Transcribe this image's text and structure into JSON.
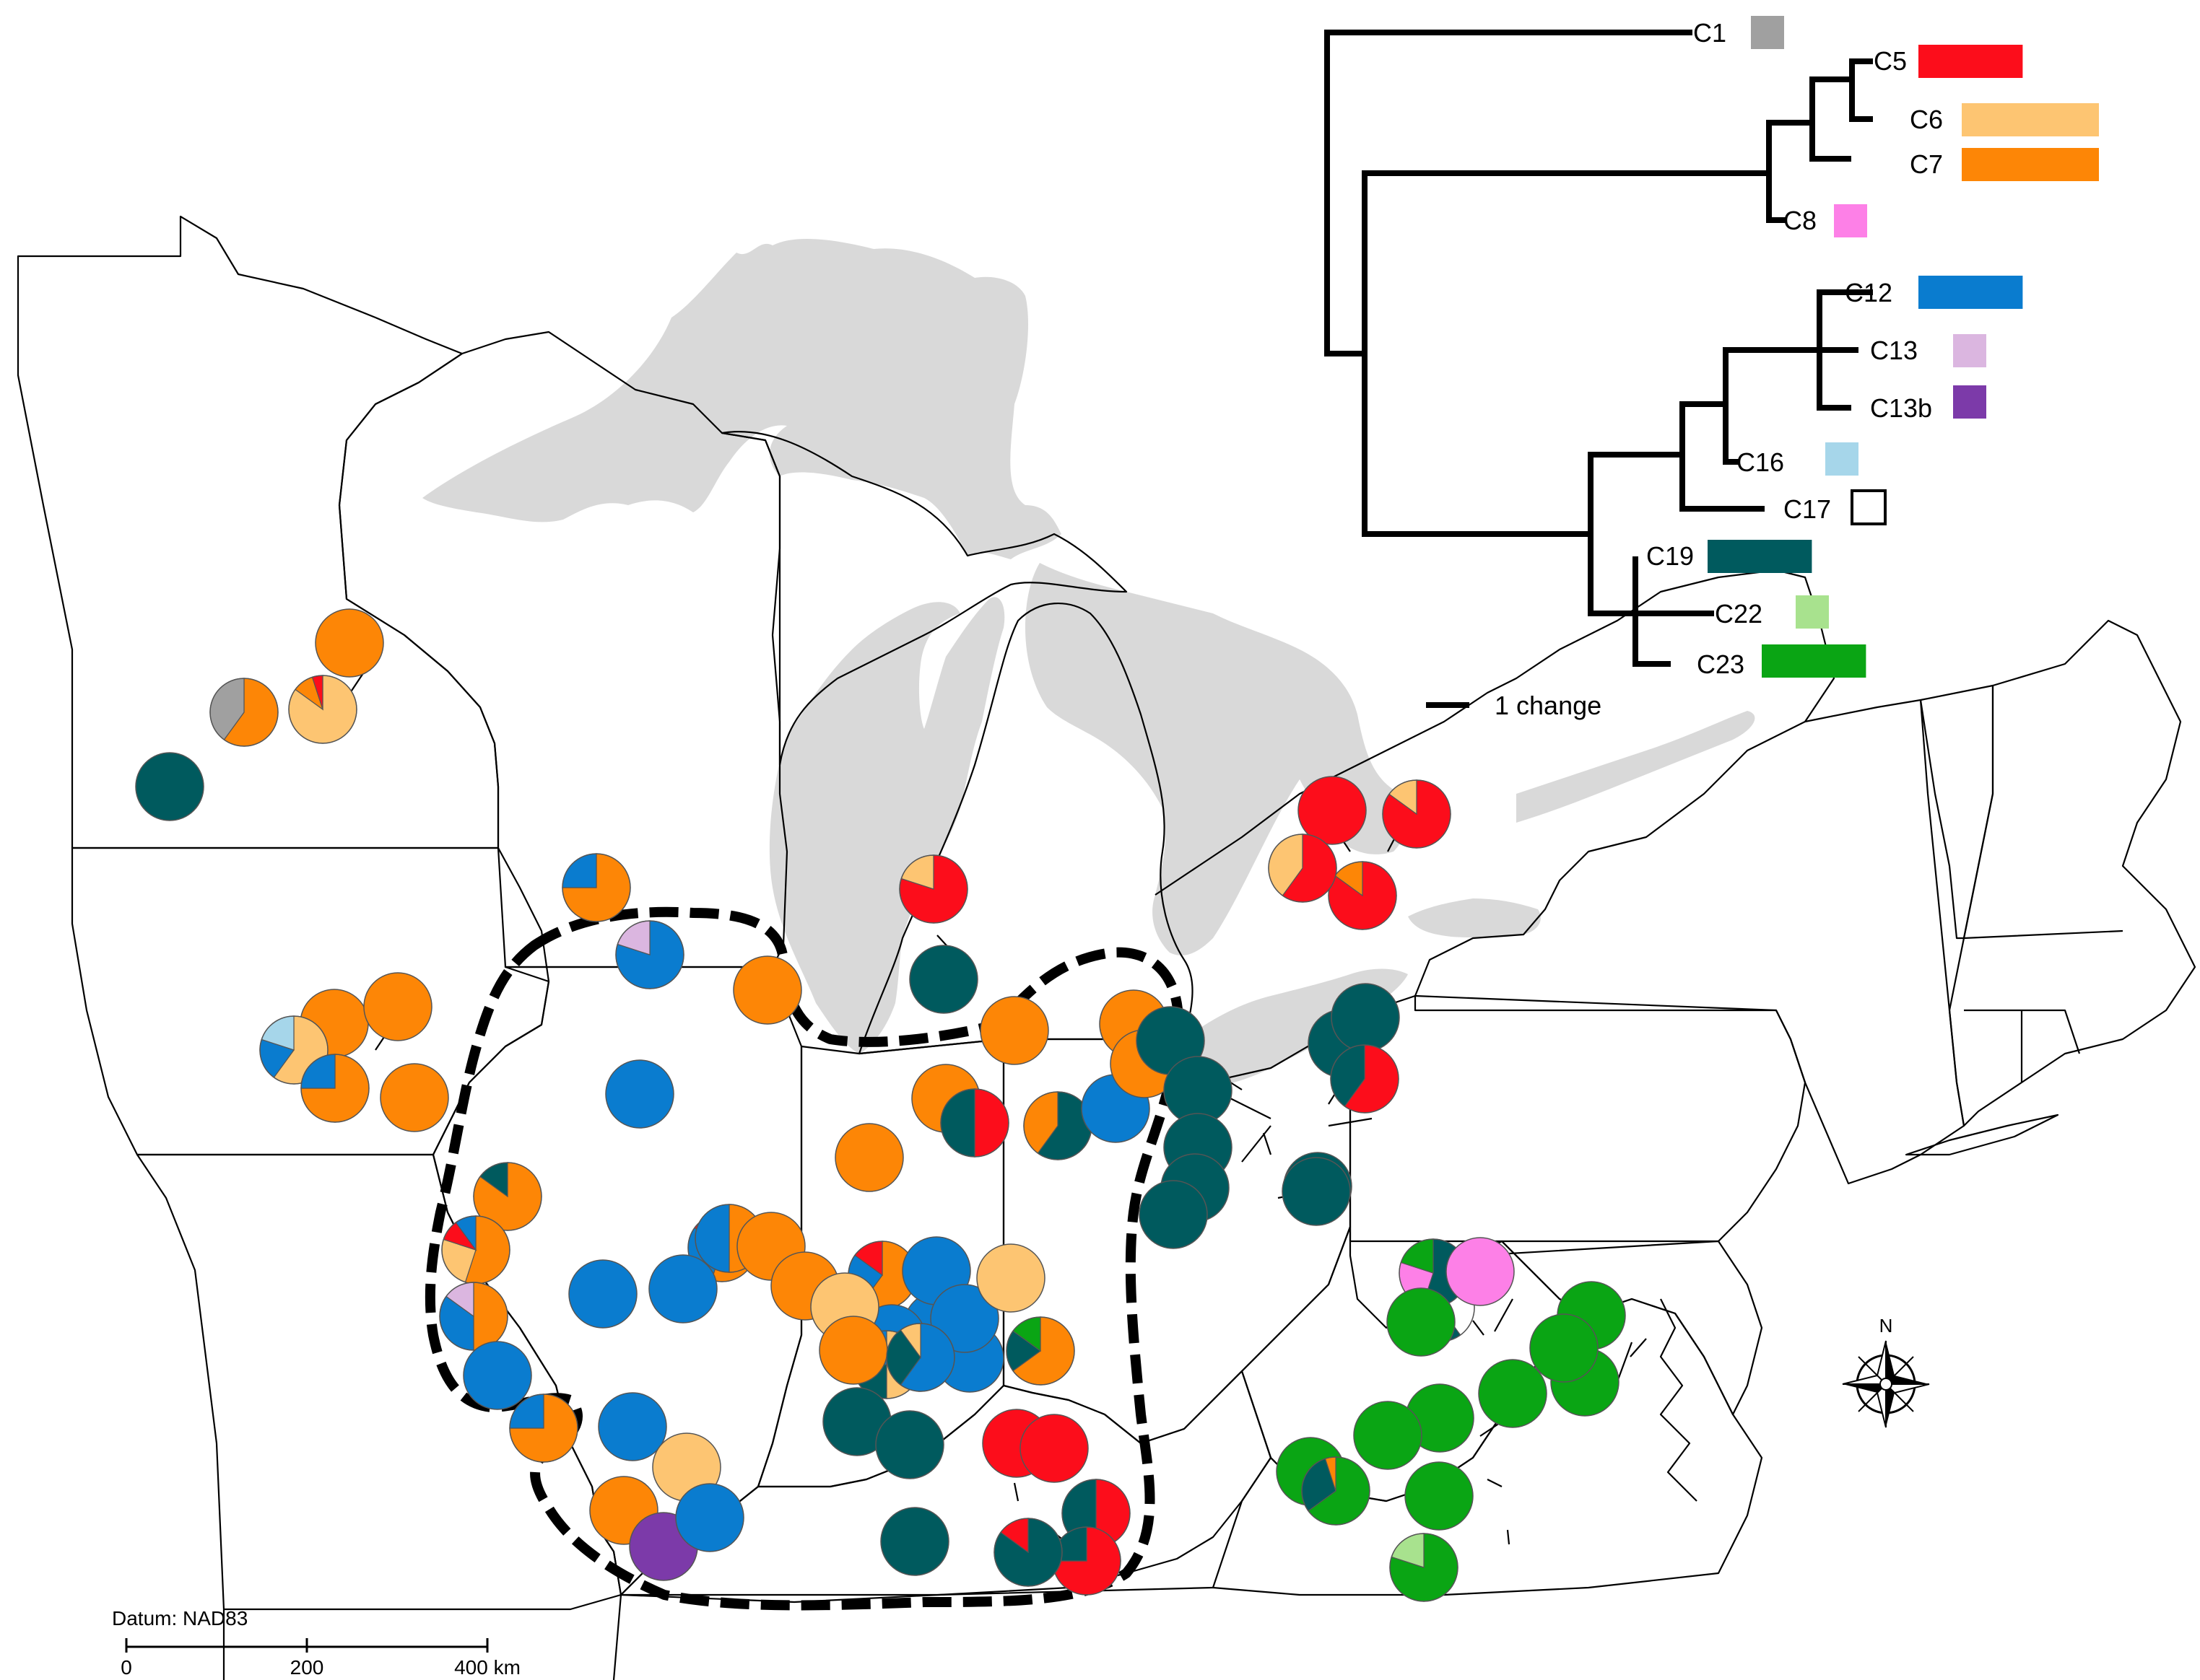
{
  "clades": [
    {
      "id": "C1",
      "label": "C1",
      "color": "#a0a0a0"
    },
    {
      "id": "C5",
      "label": "C5",
      "color": "#fc0d1b"
    },
    {
      "id": "C6",
      "label": "C6",
      "color": "#fdc572"
    },
    {
      "id": "C7",
      "label": "C7",
      "color": "#fd8606"
    },
    {
      "id": "C8",
      "label": "C8",
      "color": "#fd80e7"
    },
    {
      "id": "C12",
      "label": "C12",
      "color": "#0a7ccf"
    },
    {
      "id": "C13",
      "label": "C13",
      "color": "#dbb6e0"
    },
    {
      "id": "C13b",
      "label": "C13b",
      "color": "#7c3aa9"
    },
    {
      "id": "C16",
      "label": "C16",
      "color": "#a6d6ea"
    },
    {
      "id": "C17",
      "label": "C17",
      "color": "#ffffff"
    },
    {
      "id": "C19",
      "label": "C19",
      "color": "#005a5e"
    },
    {
      "id": "C22",
      "label": "C22",
      "color": "#a8e28e"
    },
    {
      "id": "C23",
      "label": "C23",
      "color": "#0aa514"
    }
  ],
  "tree": {
    "scale_bar_label": "1 change",
    "clade_frequency": [
      {
        "clade": "C1",
        "bar_share": 0.05
      },
      {
        "clade": "C5",
        "bar_share": 0.38
      },
      {
        "clade": "C6",
        "bar_share": 0.5
      },
      {
        "clade": "C7",
        "bar_share": 0.5
      },
      {
        "clade": "C8",
        "bar_share": 0.1
      },
      {
        "clade": "C12",
        "bar_share": 0.38
      },
      {
        "clade": "C13",
        "bar_share": 0.09
      },
      {
        "clade": "C13b",
        "bar_share": 0.1
      },
      {
        "clade": "C16",
        "bar_share": 0.09
      },
      {
        "clade": "C17",
        "bar_share": 0.09
      },
      {
        "clade": "C19",
        "bar_share": 0.38
      },
      {
        "clade": "C22",
        "bar_share": 0.09
      },
      {
        "clade": "C23",
        "bar_share": 0.38
      }
    ]
  },
  "map": {
    "datum": "Datum: NAD83",
    "scale": {
      "tick_0": "0",
      "tick_1": "200",
      "tick_2": "400 km"
    },
    "north_label": "N",
    "lake_color": "#d9d9d9",
    "sites": [
      {
        "comp": [
          [
            "C7",
            1
          ]
        ]
      },
      {
        "comp": [
          [
            "C7",
            0.6
          ],
          [
            "C1",
            0.4
          ]
        ]
      },
      {
        "comp": [
          [
            "C6",
            0.85
          ],
          [
            "C7",
            0.1
          ],
          [
            "C5",
            0.05
          ]
        ]
      },
      {
        "comp": [
          [
            "C19",
            1
          ]
        ]
      },
      {
        "comp": [
          [
            "C7",
            0.75
          ],
          [
            "C12",
            0.25
          ]
        ]
      },
      {
        "comp": [
          [
            "C12",
            0.8
          ],
          [
            "C13",
            0.2
          ]
        ]
      },
      {
        "comp": [
          [
            "C7",
            1
          ]
        ]
      },
      {
        "comp": [
          [
            "C7",
            1
          ]
        ]
      },
      {
        "comp": [
          [
            "C7",
            1
          ]
        ]
      },
      {
        "comp": [
          [
            "C6",
            0.6
          ],
          [
            "C12",
            0.2
          ],
          [
            "C16",
            0.2
          ]
        ]
      },
      {
        "comp": [
          [
            "C7",
            0.75
          ],
          [
            "C12",
            0.25
          ]
        ]
      },
      {
        "comp": [
          [
            "C7",
            1
          ]
        ]
      },
      {
        "comp": [
          [
            "C12",
            1
          ]
        ]
      },
      {
        "comp": [
          [
            "C7",
            0.85
          ],
          [
            "C19",
            0.15
          ]
        ]
      },
      {
        "comp": [
          [
            "C7",
            0.55
          ],
          [
            "C6",
            0.25
          ],
          [
            "C5",
            0.1
          ],
          [
            "C12",
            0.1
          ]
        ]
      },
      {
        "comp": [
          [
            "C7",
            0.5
          ],
          [
            "C12",
            0.35
          ],
          [
            "C13",
            0.15
          ]
        ]
      },
      {
        "comp": [
          [
            "C12",
            1
          ]
        ]
      },
      {
        "comp": [
          [
            "C7",
            0.55
          ],
          [
            "C12",
            0.3
          ],
          [
            "C5",
            0.15
          ]
        ]
      },
      {
        "comp": [
          [
            "C12",
            1
          ]
        ]
      },
      {
        "comp": [
          [
            "C12",
            1
          ]
        ]
      },
      {
        "comp": [
          [
            "C7",
            0.5
          ],
          [
            "C12",
            0.5
          ]
        ]
      },
      {
        "comp": [
          [
            "C7",
            1
          ]
        ]
      },
      {
        "comp": [
          [
            "C7",
            1
          ]
        ]
      },
      {
        "comp": [
          [
            "C12",
            1
          ]
        ]
      },
      {
        "comp": [
          [
            "C7",
            0.6
          ],
          [
            "C12",
            0.25
          ],
          [
            "C5",
            0.15
          ]
        ]
      },
      {
        "comp": [
          [
            "C12",
            1
          ]
        ]
      },
      {
        "comp": [
          [
            "C6",
            1
          ]
        ]
      },
      {
        "comp": [
          [
            "C12",
            1
          ]
        ]
      },
      {
        "comp": [
          [
            "C7",
            0.75
          ],
          [
            "C12",
            0.25
          ]
        ]
      },
      {
        "comp": [
          [
            "C12",
            1
          ]
        ]
      },
      {
        "comp": [
          [
            "C6",
            1
          ]
        ]
      },
      {
        "comp": [
          [
            "C7",
            1
          ]
        ]
      },
      {
        "comp": [
          [
            "C13b",
            1
          ]
        ]
      },
      {
        "comp": [
          [
            "C6",
            0.5
          ],
          [
            "C19",
            0.25
          ],
          [
            "C12",
            0.25
          ]
        ]
      },
      {
        "comp": [
          [
            "C12",
            1
          ]
        ]
      },
      {
        "comp": [
          [
            "C12",
            1
          ]
        ]
      },
      {
        "comp": [
          [
            "C6",
            1
          ]
        ]
      },
      {
        "comp": [
          [
            "C7",
            1
          ]
        ]
      },
      {
        "comp": [
          [
            "C12",
            0.6
          ],
          [
            "C19",
            0.3
          ],
          [
            "C6",
            0.1
          ]
        ]
      },
      {
        "comp": [
          [
            "C12",
            1
          ]
        ]
      },
      {
        "comp": [
          [
            "C7",
            0.65
          ],
          [
            "C19",
            0.2
          ],
          [
            "C23",
            0.15
          ]
        ]
      },
      {
        "comp": [
          [
            "C19",
            1
          ]
        ]
      },
      {
        "comp": [
          [
            "C19",
            1
          ]
        ]
      },
      {
        "comp": [
          [
            "C19",
            1
          ]
        ]
      },
      {
        "comp": [
          [
            "C7",
            1
          ]
        ]
      },
      {
        "comp": [
          [
            "C7",
            1
          ]
        ]
      },
      {
        "comp": [
          [
            "C5",
            0.5
          ],
          [
            "C19",
            0.5
          ]
        ]
      },
      {
        "comp": [
          [
            "C7",
            1
          ]
        ]
      },
      {
        "comp": [
          [
            "C19",
            0.6
          ],
          [
            "C7",
            0.4
          ]
        ]
      },
      {
        "comp": [
          [
            "C12",
            1
          ]
        ]
      },
      {
        "comp": [
          [
            "C7",
            1
          ]
        ]
      },
      {
        "comp": [
          [
            "C7",
            1
          ]
        ]
      },
      {
        "comp": [
          [
            "C5",
            0.8
          ],
          [
            "C6",
            0.2
          ]
        ]
      },
      {
        "comp": [
          [
            "C19",
            1
          ]
        ]
      },
      {
        "comp": [
          [
            "C5",
            1
          ]
        ]
      },
      {
        "comp": [
          [
            "C5",
            0.85
          ],
          [
            "C6",
            0.15
          ]
        ]
      },
      {
        "comp": [
          [
            "C5",
            0.85
          ],
          [
            "C7",
            0.15
          ]
        ]
      },
      {
        "comp": [
          [
            "C5",
            0.6
          ],
          [
            "C6",
            0.4
          ]
        ]
      },
      {
        "comp": [
          [
            "C5",
            1
          ]
        ]
      },
      {
        "comp": [
          [
            "C5",
            1
          ]
        ]
      },
      {
        "comp": [
          [
            "C5",
            0.5
          ],
          [
            "C19",
            0.5
          ]
        ]
      },
      {
        "comp": [
          [
            "C5",
            0.75
          ],
          [
            "C19",
            0.25
          ]
        ]
      },
      {
        "comp": [
          [
            "C19",
            0.85
          ],
          [
            "C5",
            0.15
          ]
        ]
      },
      {
        "comp": [
          [
            "C19",
            1
          ]
        ]
      },
      {
        "comp": [
          [
            "C19",
            1
          ]
        ]
      },
      {
        "comp": [
          [
            "C19",
            1
          ]
        ]
      },
      {
        "comp": [
          [
            "C19",
            1
          ]
        ]
      },
      {
        "comp": [
          [
            "C19",
            1
          ]
        ]
      },
      {
        "comp": [
          [
            "C19",
            1
          ]
        ]
      },
      {
        "comp": [
          [
            "C19",
            1
          ]
        ]
      },
      {
        "comp": [
          [
            "C5",
            0.6
          ],
          [
            "C19",
            0.4
          ]
        ]
      },
      {
        "comp": [
          [
            "C19",
            1
          ]
        ]
      },
      {
        "comp": [
          [
            "C19",
            1
          ]
        ]
      },
      {
        "comp": [
          [
            "C17",
            0.4
          ],
          [
            "C19",
            0.6
          ]
        ]
      },
      {
        "comp": [
          [
            "C19",
            0.55
          ],
          [
            "C8",
            0.25
          ],
          [
            "C23",
            0.2
          ]
        ]
      },
      {
        "comp": [
          [
            "C8",
            1
          ]
        ]
      },
      {
        "comp": [
          [
            "C23",
            1
          ]
        ]
      },
      {
        "comp": [
          [
            "C23",
            1
          ]
        ]
      },
      {
        "comp": [
          [
            "C23",
            1
          ]
        ]
      },
      {
        "comp": [
          [
            "C23",
            1
          ]
        ]
      },
      {
        "comp": [
          [
            "C23",
            1
          ]
        ]
      },
      {
        "comp": [
          [
            "C23",
            1
          ]
        ]
      },
      {
        "comp": [
          [
            "C23",
            0.65
          ],
          [
            "C19",
            0.3
          ],
          [
            "C7",
            0.05
          ]
        ]
      },
      {
        "comp": [
          [
            "C23",
            1
          ]
        ]
      },
      {
        "comp": [
          [
            "C23",
            1
          ]
        ]
      },
      {
        "comp": [
          [
            "C23",
            1
          ]
        ]
      },
      {
        "comp": [
          [
            "C23",
            0.8
          ],
          [
            "C22",
            0.2
          ]
        ]
      }
    ]
  }
}
